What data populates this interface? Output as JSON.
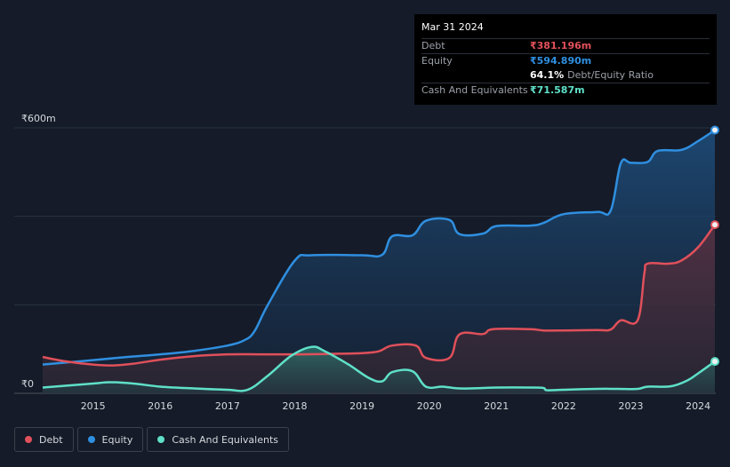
{
  "tooltip": {
    "date": "Mar 31 2024",
    "rows": [
      {
        "label": "Debt",
        "value": "₹381.196m",
        "color": "#e0505a"
      },
      {
        "label": "Equity",
        "value": "₹594.890m",
        "color": "#2f8fe0"
      },
      {
        "label": "",
        "value": "64.1%",
        "suffix": "Debt/Equity Ratio",
        "color": "#ffffff"
      },
      {
        "label": "Cash And Equivalents",
        "value": "₹71.587m",
        "color": "#5fe0c8"
      }
    ]
  },
  "legend": [
    {
      "label": "Debt",
      "color": "#e0505a"
    },
    {
      "label": "Equity",
      "color": "#2f8fe0"
    },
    {
      "label": "Cash And Equivalents",
      "color": "#5fe0c8"
    }
  ],
  "chart_data": {
    "type": "area",
    "ylim": [
      0,
      600
    ],
    "yticks": [
      {
        "value": 600,
        "label": "₹600m"
      },
      {
        "value": 0,
        "label": "₹0"
      }
    ],
    "xlim": [
      2014.25,
      2024.25
    ],
    "xticks": [
      "2015",
      "2016",
      "2017",
      "2018",
      "2019",
      "2020",
      "2021",
      "2022",
      "2023",
      "2024"
    ],
    "grid": true,
    "series": [
      {
        "name": "Equity",
        "color": "#2f8fe0",
        "points": [
          [
            2014.25,
            65
          ],
          [
            2015,
            75
          ],
          [
            2015.5,
            82
          ],
          [
            2016,
            88
          ],
          [
            2016.5,
            96
          ],
          [
            2017,
            108
          ],
          [
            2017.25,
            120
          ],
          [
            2017.4,
            140
          ],
          [
            2017.6,
            200
          ],
          [
            2018.0,
            300
          ],
          [
            2018.25,
            312
          ],
          [
            2019.0,
            312
          ],
          [
            2019.3,
            313
          ],
          [
            2019.45,
            355
          ],
          [
            2019.75,
            357
          ],
          [
            2019.95,
            390
          ],
          [
            2020.3,
            392
          ],
          [
            2020.45,
            360
          ],
          [
            2020.8,
            361
          ],
          [
            2021.0,
            378
          ],
          [
            2021.5,
            379
          ],
          [
            2021.7,
            385
          ],
          [
            2022.0,
            405
          ],
          [
            2022.5,
            410
          ],
          [
            2022.7,
            413
          ],
          [
            2022.85,
            520
          ],
          [
            2023.0,
            521
          ],
          [
            2023.25,
            523
          ],
          [
            2023.4,
            548
          ],
          [
            2023.75,
            550
          ],
          [
            2024.0,
            570
          ],
          [
            2024.25,
            595
          ]
        ]
      },
      {
        "name": "Debt",
        "color": "#e0505a",
        "points": [
          [
            2014.25,
            82
          ],
          [
            2014.6,
            72
          ],
          [
            2015,
            65
          ],
          [
            2015.3,
            63
          ],
          [
            2015.6,
            67
          ],
          [
            2016,
            76
          ],
          [
            2016.5,
            84
          ],
          [
            2017,
            88
          ],
          [
            2017.5,
            88
          ],
          [
            2018,
            88
          ],
          [
            2018.5,
            89
          ],
          [
            2019.0,
            91
          ],
          [
            2019.25,
            95
          ],
          [
            2019.45,
            108
          ],
          [
            2019.8,
            108
          ],
          [
            2019.95,
            80
          ],
          [
            2020.3,
            80
          ],
          [
            2020.45,
            133
          ],
          [
            2020.8,
            134
          ],
          [
            2020.95,
            145
          ],
          [
            2021.5,
            145
          ],
          [
            2021.7,
            142
          ],
          [
            2022.0,
            142
          ],
          [
            2022.5,
            143
          ],
          [
            2022.7,
            144
          ],
          [
            2022.85,
            165
          ],
          [
            2023.1,
            165
          ],
          [
            2023.2,
            270
          ],
          [
            2023.25,
            293
          ],
          [
            2023.55,
            293
          ],
          [
            2023.75,
            300
          ],
          [
            2024.0,
            330
          ],
          [
            2024.25,
            381
          ]
        ]
      },
      {
        "name": "Cash And Equivalents",
        "color": "#5fe0c8",
        "points": [
          [
            2014.25,
            13
          ],
          [
            2015,
            22
          ],
          [
            2015.25,
            25
          ],
          [
            2015.6,
            22
          ],
          [
            2016.0,
            15
          ],
          [
            2016.5,
            11
          ],
          [
            2017.0,
            8
          ],
          [
            2017.3,
            8
          ],
          [
            2017.6,
            40
          ],
          [
            2017.95,
            85
          ],
          [
            2018.25,
            105
          ],
          [
            2018.45,
            95
          ],
          [
            2018.8,
            65
          ],
          [
            2019.1,
            35
          ],
          [
            2019.3,
            27
          ],
          [
            2019.45,
            48
          ],
          [
            2019.75,
            50
          ],
          [
            2019.95,
            15
          ],
          [
            2020.2,
            15
          ],
          [
            2020.45,
            11
          ],
          [
            2020.8,
            12
          ],
          [
            2021.0,
            13
          ],
          [
            2021.5,
            13
          ],
          [
            2021.7,
            12
          ],
          [
            2021.75,
            7
          ],
          [
            2022.0,
            8
          ],
          [
            2022.5,
            10
          ],
          [
            2022.8,
            10
          ],
          [
            2023.1,
            10
          ],
          [
            2023.25,
            15
          ],
          [
            2023.6,
            16
          ],
          [
            2023.85,
            30
          ],
          [
            2024.0,
            45
          ],
          [
            2024.25,
            72
          ]
        ]
      }
    ]
  }
}
